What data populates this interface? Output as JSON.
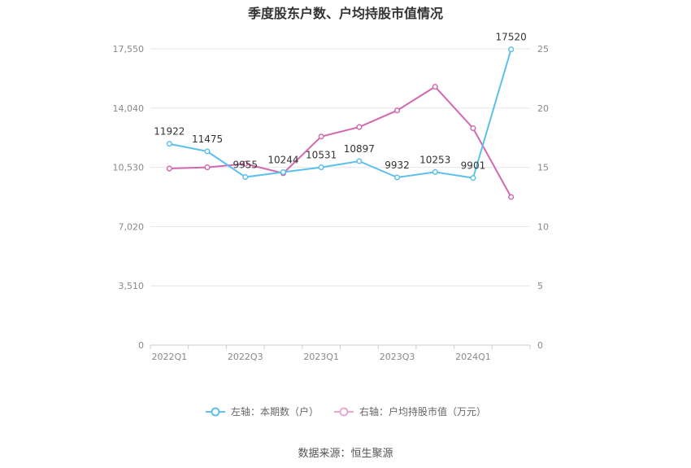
{
  "chart_data": {
    "type": "line",
    "title": "季度股东户数、户均持股市值情况",
    "categories": [
      "2022Q1",
      "2022Q2",
      "2022Q3",
      "2022Q4",
      "2023Q1",
      "2023Q2",
      "2023Q3",
      "2023Q4",
      "2024Q1",
      "2024Q2"
    ],
    "x_tick_labels": [
      "2022Q1",
      "2022Q3",
      "2023Q1",
      "2023Q3",
      "2024Q1"
    ],
    "y_left": {
      "ticks": [
        "0",
        "3,510",
        "7,020",
        "10,530",
        "14,040",
        "17,550"
      ],
      "range": [
        0,
        17550
      ]
    },
    "y_right": {
      "ticks": [
        "0",
        "5",
        "10",
        "15",
        "20",
        "25"
      ],
      "range": [
        0,
        25
      ]
    },
    "grid": true,
    "legend_position": "bottom",
    "series": [
      {
        "name": "左轴：本期数（户）",
        "axis": "left",
        "color": "#5bc0eb",
        "values": [
          11922,
          11475,
          9955,
          10244,
          10531,
          10897,
          9932,
          10253,
          9901,
          17520
        ],
        "labels": [
          "11922",
          "11475",
          "9955",
          "10244",
          "10531",
          "10897",
          "9932",
          "10253",
          "9901",
          "17520"
        ]
      },
      {
        "name": "右轴：户均持股市值（万元）",
        "axis": "right",
        "color": "#d268b0",
        "values": [
          14.9,
          15.0,
          15.3,
          14.5,
          17.6,
          18.4,
          19.8,
          21.8,
          18.3,
          12.5
        ]
      }
    ]
  },
  "source": "数据来源：恒生聚源"
}
